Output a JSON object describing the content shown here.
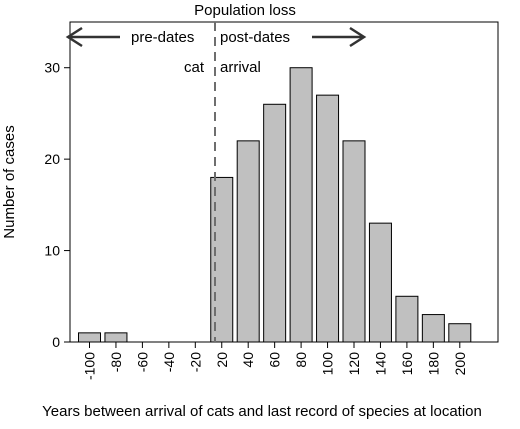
{
  "chart_data": {
    "type": "bar",
    "title": "Population loss",
    "xlabel": "Years between arrival of cats and last record of species at location",
    "ylabel": "Number of cases",
    "categories": [
      "-100",
      "-80",
      "-60",
      "-40",
      "-20",
      "20",
      "40",
      "60",
      "80",
      "100",
      "120",
      "140",
      "160",
      "180",
      "200"
    ],
    "values": [
      1,
      1,
      0,
      0,
      0,
      18,
      22,
      26,
      30,
      27,
      22,
      13,
      5,
      3,
      2
    ],
    "ylim": [
      0,
      35
    ],
    "yticks": [
      0,
      10,
      20,
      30
    ],
    "grid": false,
    "bar_color": "#c0c0c0",
    "annotations": {
      "pre_dates": "pre-dates",
      "post_dates": "post-dates",
      "cat": "cat",
      "arrival": "arrival"
    },
    "divider_style": "dashed vertical line between -20 and 20"
  }
}
